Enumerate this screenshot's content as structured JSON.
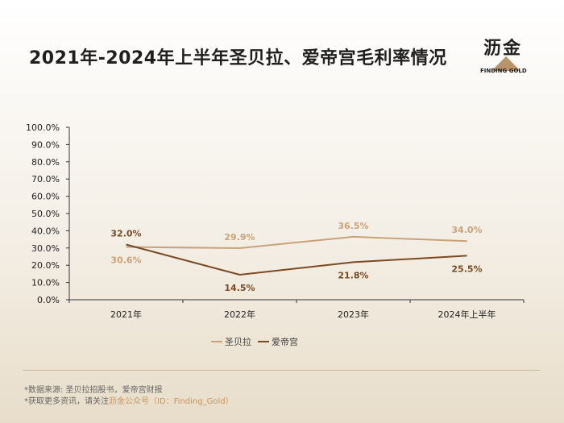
{
  "title": "2021年-2024年上半年圣贝拉、爱帝宫毛利率情况",
  "logo": {
    "name": "沥金",
    "tagline": "FINDING GOLD"
  },
  "footer": {
    "source": "*数据来源: 圣贝拉招股书，爱帝宫财报",
    "promo_prefix": "*获取更多资讯，请关注",
    "promo_highlight": "沥金公众号（ID：Finding_Gold）"
  },
  "colors": {
    "series_1": "#c9a27a",
    "series_2": "#7a4a22"
  },
  "chart_data": {
    "type": "line",
    "title": "2021年-2024年上半年圣贝拉、爱帝宫毛利率情况",
    "categories": [
      "2021年",
      "2022年",
      "2023年",
      "2024年上半年"
    ],
    "y_ticks": [
      "0.0%",
      "10.0%",
      "20.0%",
      "30.0%",
      "40.0%",
      "50.0%",
      "60.0%",
      "70.0%",
      "80.0%",
      "90.0%",
      "100.0%"
    ],
    "ylim": [
      0,
      100
    ],
    "legend_position": "bottom",
    "grid": false,
    "series": [
      {
        "name": "圣贝拉",
        "values": [
          30.6,
          29.9,
          36.5,
          34.0
        ],
        "labels": [
          "30.6%",
          "29.9%",
          "36.5%",
          "34.0%"
        ]
      },
      {
        "name": "爱帝宫",
        "values": [
          32.0,
          14.5,
          21.8,
          25.5
        ],
        "labels": [
          "32.0%",
          "14.5%",
          "21.8%",
          "25.5%"
        ]
      }
    ]
  }
}
